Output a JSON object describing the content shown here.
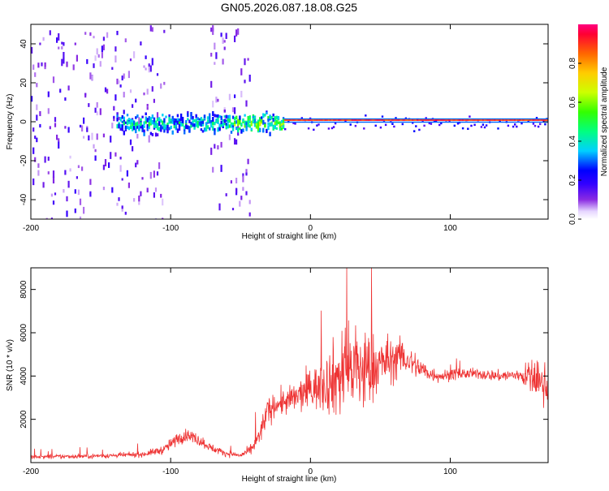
{
  "title": "GN05.2026.087.18.08.G25",
  "colors": {
    "snr_line": "#ee3333",
    "axis": "#000000",
    "background": "#ffffff"
  },
  "chart_data": [
    {
      "type": "heatmap",
      "name": "spectrogram",
      "xlabel": "Height of straight line (km)",
      "ylabel": "Frequency (Hz)",
      "xlim": [
        -200,
        170
      ],
      "ylim": [
        -50,
        50
      ],
      "xticks": [
        -200,
        -100,
        0,
        100
      ],
      "yticks": [
        -40,
        -20,
        0,
        20,
        40
      ],
      "colorbar": {
        "label": "Normalized spectral amplitude",
        "range": [
          0.0,
          1.0
        ],
        "ticks": [
          "0.0",
          "0.2",
          "0.4",
          "0.6",
          "0.8"
        ],
        "tick_values": [
          0.0,
          0.2,
          0.4,
          0.6,
          0.8
        ]
      },
      "features": [
        {
          "region": "noisy-broadband",
          "x_from": -200,
          "x_to": -105,
          "freq_spread": 50,
          "amplitude": 0.15
        },
        {
          "region": "noisy-broadband",
          "x_from": -72,
          "x_to": -43,
          "freq_spread": 50,
          "amplitude": 0.15
        },
        {
          "region": "carrier-emerging",
          "x_from": -140,
          "x_to": -20,
          "freq_spread": 8,
          "amplitude": 0.45
        },
        {
          "region": "carrier-locked",
          "x_from": -20,
          "x_to": 170,
          "center_freq": 0.5,
          "amplitude": 0.95
        }
      ]
    },
    {
      "type": "line",
      "name": "snr",
      "xlabel": "Height of straight line (km)",
      "ylabel": "SNR (10 * v/v)",
      "xlim": [
        -200,
        170
      ],
      "ylim": [
        0,
        9000
      ],
      "xticks": [
        -200,
        -100,
        0,
        100
      ],
      "yticks": [
        2000,
        4000,
        6000,
        8000
      ],
      "series": [
        {
          "name": "SNR",
          "x": [
            -200,
            -180,
            -160,
            -140,
            -120,
            -105,
            -95,
            -88,
            -80,
            -70,
            -60,
            -50,
            -42,
            -36,
            -32,
            -25,
            -15,
            -5,
            5,
            12,
            18,
            25,
            30,
            38,
            45,
            55,
            65,
            75,
            85,
            95,
            105,
            120,
            135,
            150,
            160,
            170
          ],
          "values": [
            250,
            280,
            300,
            330,
            380,
            600,
            1100,
            1300,
            1050,
            650,
            420,
            330,
            600,
            1300,
            2200,
            2700,
            2850,
            3200,
            3500,
            3700,
            3900,
            4200,
            4400,
            4200,
            4400,
            4700,
            4900,
            4500,
            4100,
            4000,
            4100,
            4100,
            4000,
            4050,
            3900,
            3500
          ],
          "noise_amplitude": [
            110,
            110,
            120,
            120,
            130,
            220,
            320,
            320,
            300,
            200,
            150,
            120,
            260,
            500,
            700,
            600,
            700,
            900,
            1100,
            1500,
            2000,
            2400,
            2500,
            2300,
            1700,
            1200,
            900,
            650,
            400,
            300,
            280,
            250,
            280,
            320,
            1100,
            900
          ]
        }
      ]
    }
  ]
}
